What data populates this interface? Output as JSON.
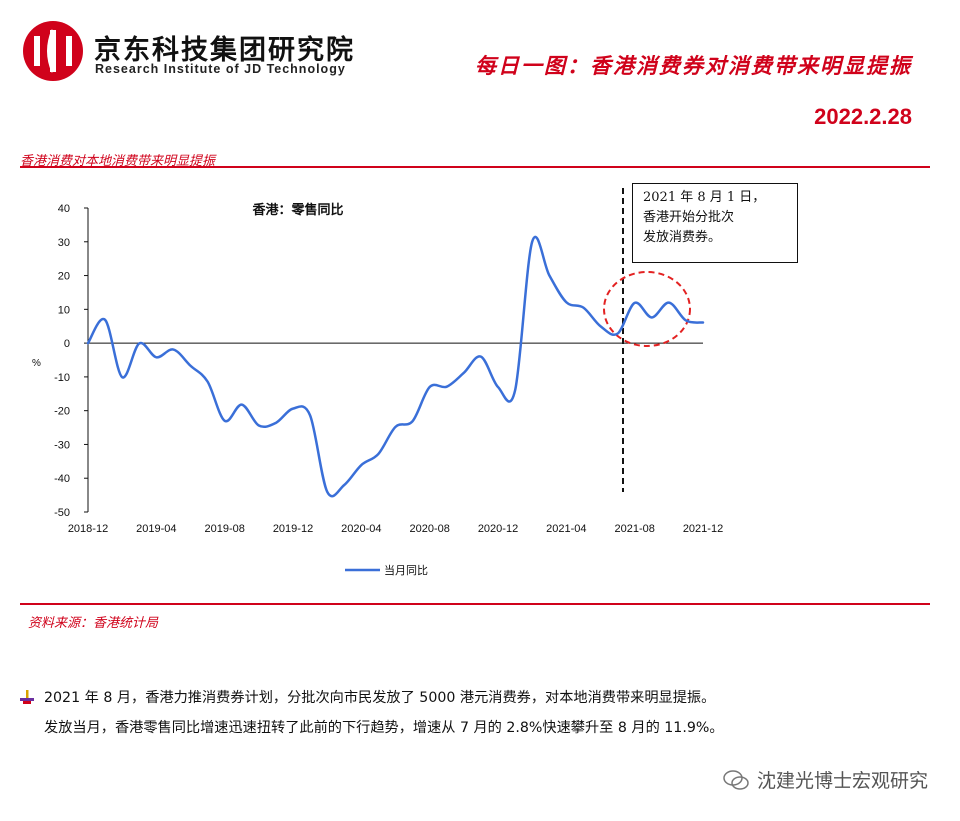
{
  "header": {
    "brand_cn": "京东科技集团研究院",
    "brand_en": "Research Institute of JD Technology",
    "headline": "每日一图：香港消费券对消费带来明显提振",
    "date": "2022.2.28"
  },
  "section_title": "香港消费对本地消费带来明显提振",
  "source": "资料来源：香港统计局",
  "paragraph": {
    "line1": "2021 年 8 月，香港力推消费券计划，分批次向市民发放了 5000 港元消费券，对本地消费带来明显提振。",
    "line2": "发放当月，香港零售同比增速迅速扭转了此前的下行趋势，增速从 7 月的 2.8%快速攀升至 8 月的 11.9%。"
  },
  "watermark": "沈建光博士宏观研究",
  "colors": {
    "accent": "#d0021b",
    "line": "#3a6fd8"
  },
  "chart_data": {
    "type": "line",
    "title": "香港：零售同比",
    "ylabel": "%",
    "ylim": [
      -50,
      40
    ],
    "yticks": [
      40,
      30,
      20,
      10,
      0,
      -10,
      -20,
      -30,
      -40,
      -50
    ],
    "xtick_labels": [
      "2018-12",
      "2019-04",
      "2019-08",
      "2019-12",
      "2020-04",
      "2020-08",
      "2020-12",
      "2021-04",
      "2021-08",
      "2021-12"
    ],
    "x": [
      "2018-12",
      "2019-01",
      "2019-02",
      "2019-03",
      "2019-04",
      "2019-05",
      "2019-06",
      "2019-07",
      "2019-08",
      "2019-09",
      "2019-10",
      "2019-11",
      "2019-12",
      "2020-01",
      "2020-02",
      "2020-03",
      "2020-04",
      "2020-05",
      "2020-06",
      "2020-07",
      "2020-08",
      "2020-09",
      "2020-10",
      "2020-11",
      "2020-12",
      "2021-01",
      "2021-02",
      "2021-03",
      "2021-04",
      "2021-05",
      "2021-06",
      "2021-07",
      "2021-08",
      "2021-09",
      "2021-10",
      "2021-11",
      "2021-12"
    ],
    "series": [
      {
        "name": "当月同比",
        "values": [
          0.0,
          6.9,
          -10.1,
          -0.1,
          -4.2,
          -1.9,
          -6.7,
          -11.4,
          -23.0,
          -18.2,
          -24.4,
          -23.6,
          -19.4,
          -21.4,
          -44.0,
          -42.0,
          -36.1,
          -32.8,
          -24.8,
          -23.1,
          -13.0,
          -12.9,
          -8.8,
          -4.0,
          -13.0,
          -14.0,
          30.0,
          20.1,
          12.1,
          10.5,
          5.0,
          2.8,
          11.9,
          7.6,
          12.0,
          6.7,
          6.1
        ]
      }
    ],
    "annotation": {
      "text_lines": [
        "2021 年 8 月 1 日，",
        "香港开始分批次",
        "发放消费券。"
      ],
      "at": "2021-08"
    },
    "legend_position": "bottom",
    "grid": false
  }
}
